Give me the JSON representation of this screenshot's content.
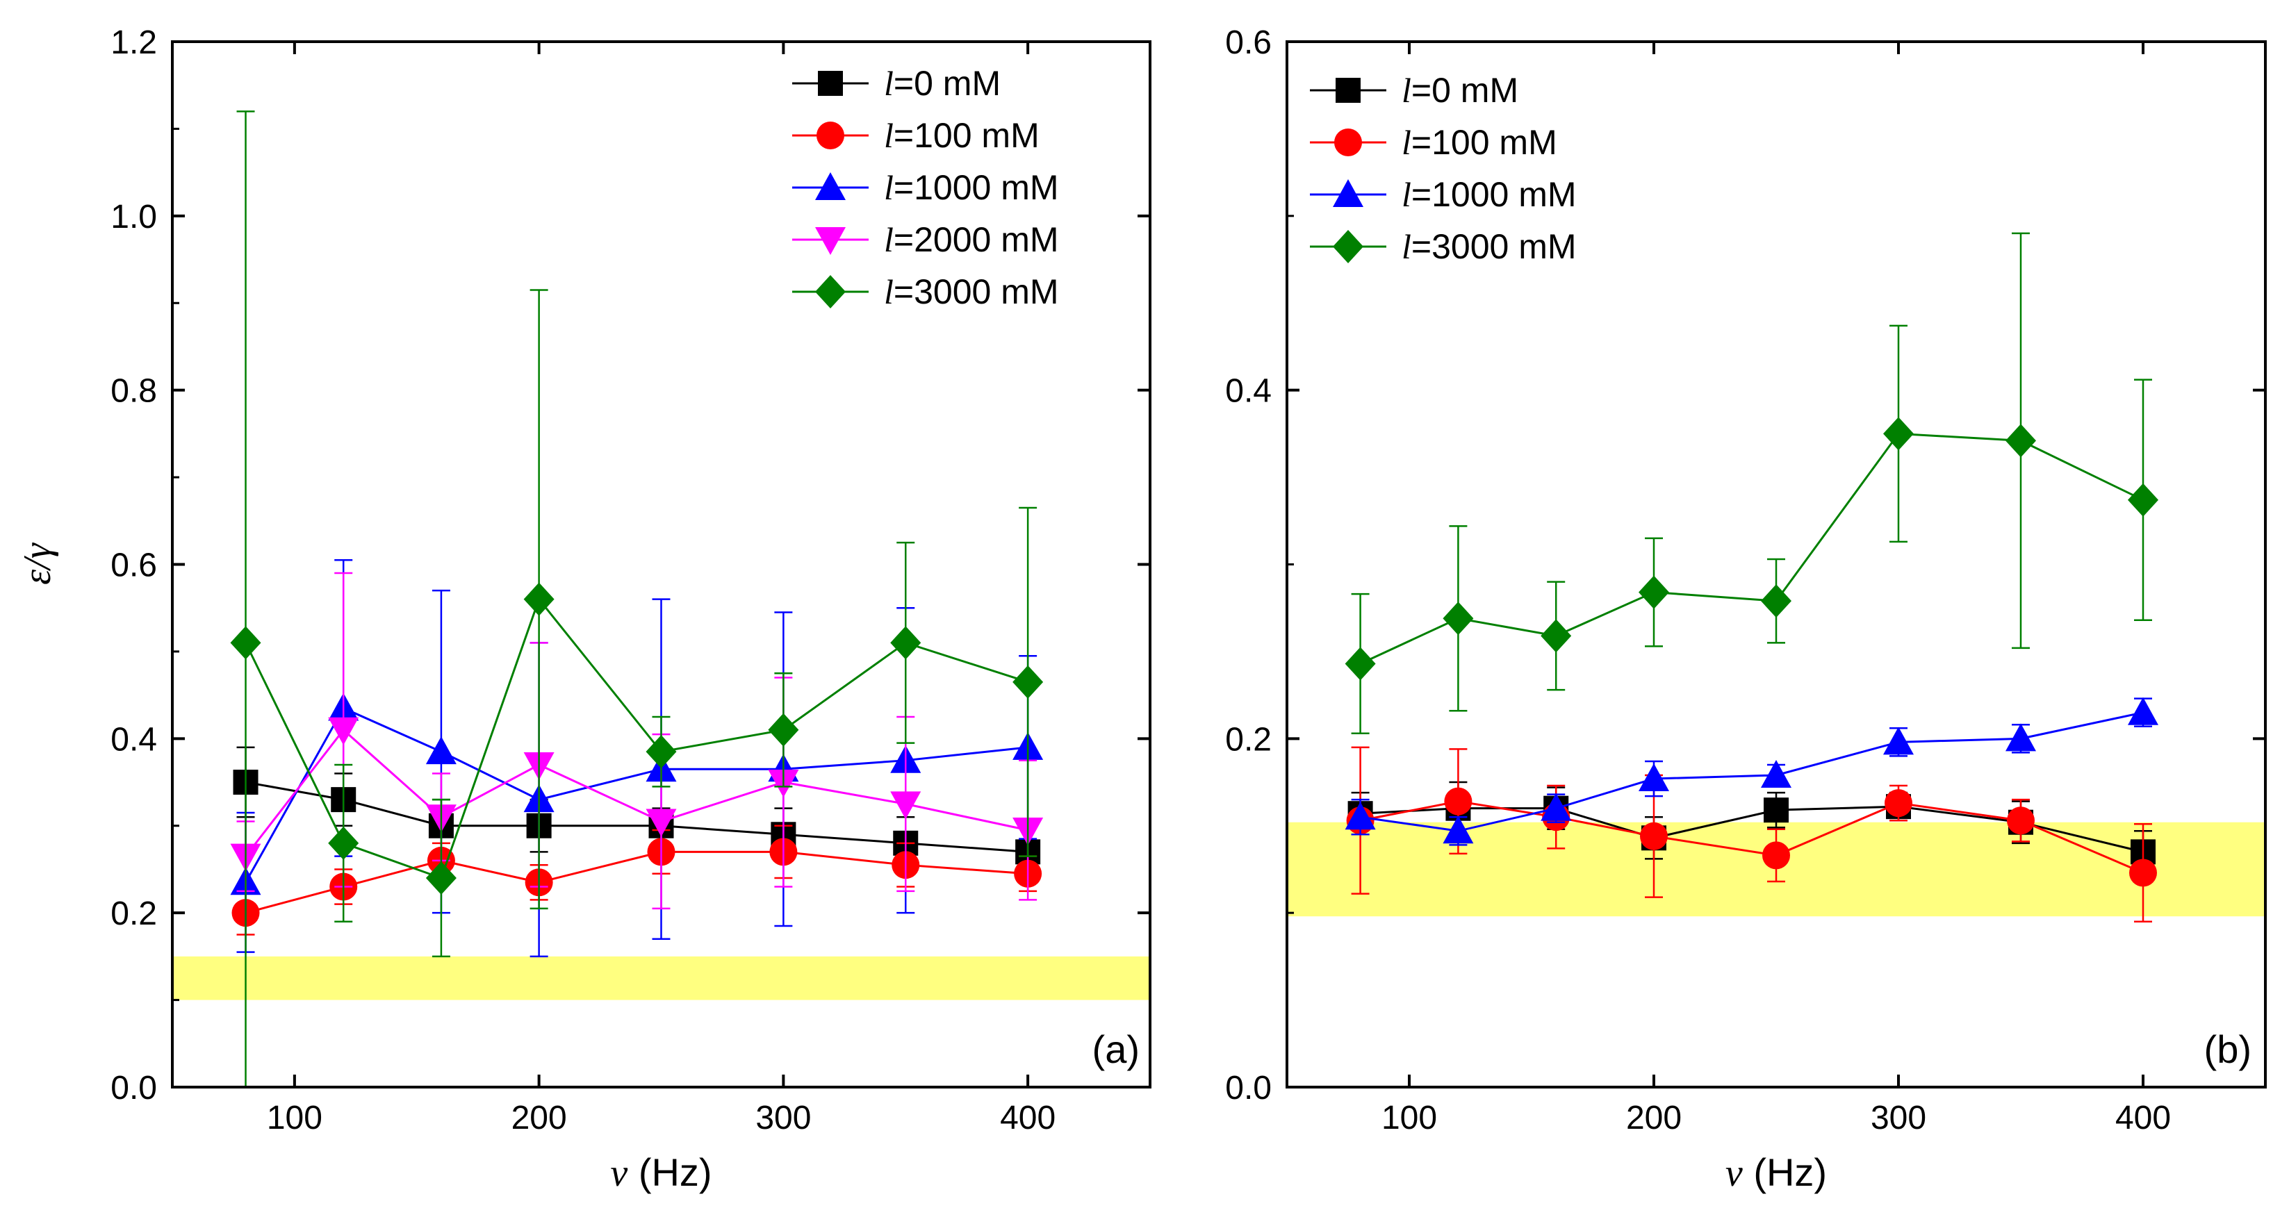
{
  "chart_data": [
    {
      "panel": "a",
      "type": "line",
      "panel_label": "(a)",
      "ylabel_text": "ε/γ",
      "xlabel_var": "ν",
      "xlabel_unit": "(Hz)",
      "xlim": [
        50,
        450
      ],
      "ylim": [
        0.0,
        1.2
      ],
      "xticks": [
        100,
        200,
        300,
        400
      ],
      "xtick_labels": [
        "100",
        "200",
        "300",
        "400"
      ],
      "yticks": [
        0.0,
        0.2,
        0.4,
        0.6,
        0.8,
        1.0,
        1.2
      ],
      "ytick_labels": [
        "0.0",
        "0.2",
        "0.4",
        "0.6",
        "0.8",
        "1.0",
        "1.2"
      ],
      "band": {
        "y0": 0.1,
        "y1": 0.15,
        "color": "#FFFF80"
      },
      "legend_position": "top-right",
      "series": [
        {
          "name": "l=0 mM",
          "legend_var": "l",
          "legend_rest": "=0 mM",
          "color": "#000000",
          "marker": "square",
          "x": [
            80,
            120,
            160,
            200,
            250,
            300,
            350,
            400
          ],
          "y": [
            0.35,
            0.33,
            0.3,
            0.3,
            0.3,
            0.29,
            0.28,
            0.27
          ],
          "err": [
            0.04,
            0.03,
            0.03,
            0.03,
            0.02,
            0.03,
            0.03,
            0.03
          ]
        },
        {
          "name": "l=100 mM",
          "legend_var": "l",
          "legend_rest": "=100 mM",
          "color": "#FF0000",
          "marker": "circle",
          "x": [
            80,
            120,
            160,
            200,
            250,
            300,
            350,
            400
          ],
          "y": [
            0.2,
            0.23,
            0.26,
            0.235,
            0.27,
            0.27,
            0.255,
            0.245
          ],
          "err": [
            0.025,
            0.02,
            0.02,
            0.02,
            0.025,
            0.03,
            0.025,
            0.02
          ]
        },
        {
          "name": "l=1000 mM",
          "legend_var": "l",
          "legend_rest": "=1000 mM",
          "color": "#0000FF",
          "marker": "triangle-up",
          "x": [
            80,
            120,
            160,
            200,
            250,
            300,
            350,
            400
          ],
          "y": [
            0.235,
            0.435,
            0.385,
            0.33,
            0.365,
            0.365,
            0.375,
            0.39
          ],
          "err": [
            0.08,
            0.17,
            0.185,
            0.18,
            0.195,
            0.18,
            0.175,
            0.105
          ]
        },
        {
          "name": "l=2000 mM",
          "legend_var": "l",
          "legend_rest": "=2000 mM",
          "color": "#FF00FF",
          "marker": "triangle-down",
          "x": [
            80,
            120,
            160,
            200,
            250,
            300,
            350,
            400
          ],
          "y": [
            0.265,
            0.41,
            0.31,
            0.37,
            0.305,
            0.35,
            0.325,
            0.295
          ],
          "err": [
            0.04,
            0.18,
            0.05,
            0.14,
            0.1,
            0.12,
            0.1,
            0.08
          ]
        },
        {
          "name": "l=3000 mM",
          "legend_var": "l",
          "legend_rest": "=3000 mM",
          "color": "#008000",
          "marker": "diamond",
          "x": [
            80,
            120,
            160,
            200,
            250,
            300,
            350,
            400
          ],
          "y": [
            0.51,
            0.28,
            0.24,
            0.56,
            0.385,
            0.41,
            0.51,
            0.465
          ],
          "err": [
            0.61,
            0.09,
            0.09,
            0.355,
            0.04,
            0.065,
            0.115,
            0.2
          ]
        }
      ]
    },
    {
      "panel": "b",
      "type": "line",
      "panel_label": "(b)",
      "xlabel_var": "ν",
      "xlabel_unit": "(Hz)",
      "xlim": [
        50,
        450
      ],
      "ylim": [
        0.0,
        0.6
      ],
      "xticks": [
        100,
        200,
        300,
        400
      ],
      "xtick_labels": [
        "100",
        "200",
        "300",
        "400"
      ],
      "yticks": [
        0.0,
        0.2,
        0.4,
        0.6
      ],
      "ytick_labels": [
        "0.0",
        "0.2",
        "0.4",
        "0.6"
      ],
      "band": {
        "y0": 0.098,
        "y1": 0.152,
        "color": "#FFFF80"
      },
      "legend_position": "top-left",
      "series": [
        {
          "name": "l=0 mM",
          "legend_var": "l",
          "legend_rest": "=0 mM",
          "color": "#000000",
          "marker": "square",
          "x": [
            80,
            120,
            160,
            200,
            250,
            300,
            350,
            400
          ],
          "y": [
            0.157,
            0.16,
            0.16,
            0.143,
            0.159,
            0.161,
            0.152,
            0.135
          ],
          "err": [
            0.012,
            0.015,
            0.012,
            0.012,
            0.01,
            0.008,
            0.012,
            0.012
          ]
        },
        {
          "name": "l=100 mM",
          "legend_var": "l",
          "legend_rest": "=100 mM",
          "color": "#FF0000",
          "marker": "circle",
          "x": [
            80,
            120,
            160,
            200,
            250,
            300,
            350,
            400
          ],
          "y": [
            0.153,
            0.164,
            0.155,
            0.144,
            0.133,
            0.163,
            0.153,
            0.123
          ],
          "err": [
            0.042,
            0.03,
            0.018,
            0.035,
            0.015,
            0.01,
            0.012,
            0.028
          ]
        },
        {
          "name": "l=1000 mM",
          "legend_var": "l",
          "legend_rest": "=1000 mM",
          "color": "#0000FF",
          "marker": "triangle-up",
          "x": [
            80,
            120,
            160,
            200,
            250,
            300,
            350,
            400
          ],
          "y": [
            0.155,
            0.147,
            0.16,
            0.177,
            0.179,
            0.198,
            0.2,
            0.215
          ],
          "err": [
            0.01,
            0.008,
            0.008,
            0.01,
            0.006,
            0.008,
            0.008,
            0.008
          ]
        },
        {
          "name": "l=3000 mM",
          "legend_var": "l",
          "legend_rest": "=3000 mM",
          "color": "#008000",
          "marker": "diamond",
          "x": [
            80,
            120,
            160,
            200,
            250,
            300,
            350,
            400
          ],
          "y": [
            0.243,
            0.269,
            0.259,
            0.284,
            0.279,
            0.375,
            0.371,
            0.337
          ],
          "err": [
            0.04,
            0.053,
            0.031,
            0.031,
            0.024,
            0.062,
            0.119,
            0.069
          ]
        }
      ]
    }
  ]
}
